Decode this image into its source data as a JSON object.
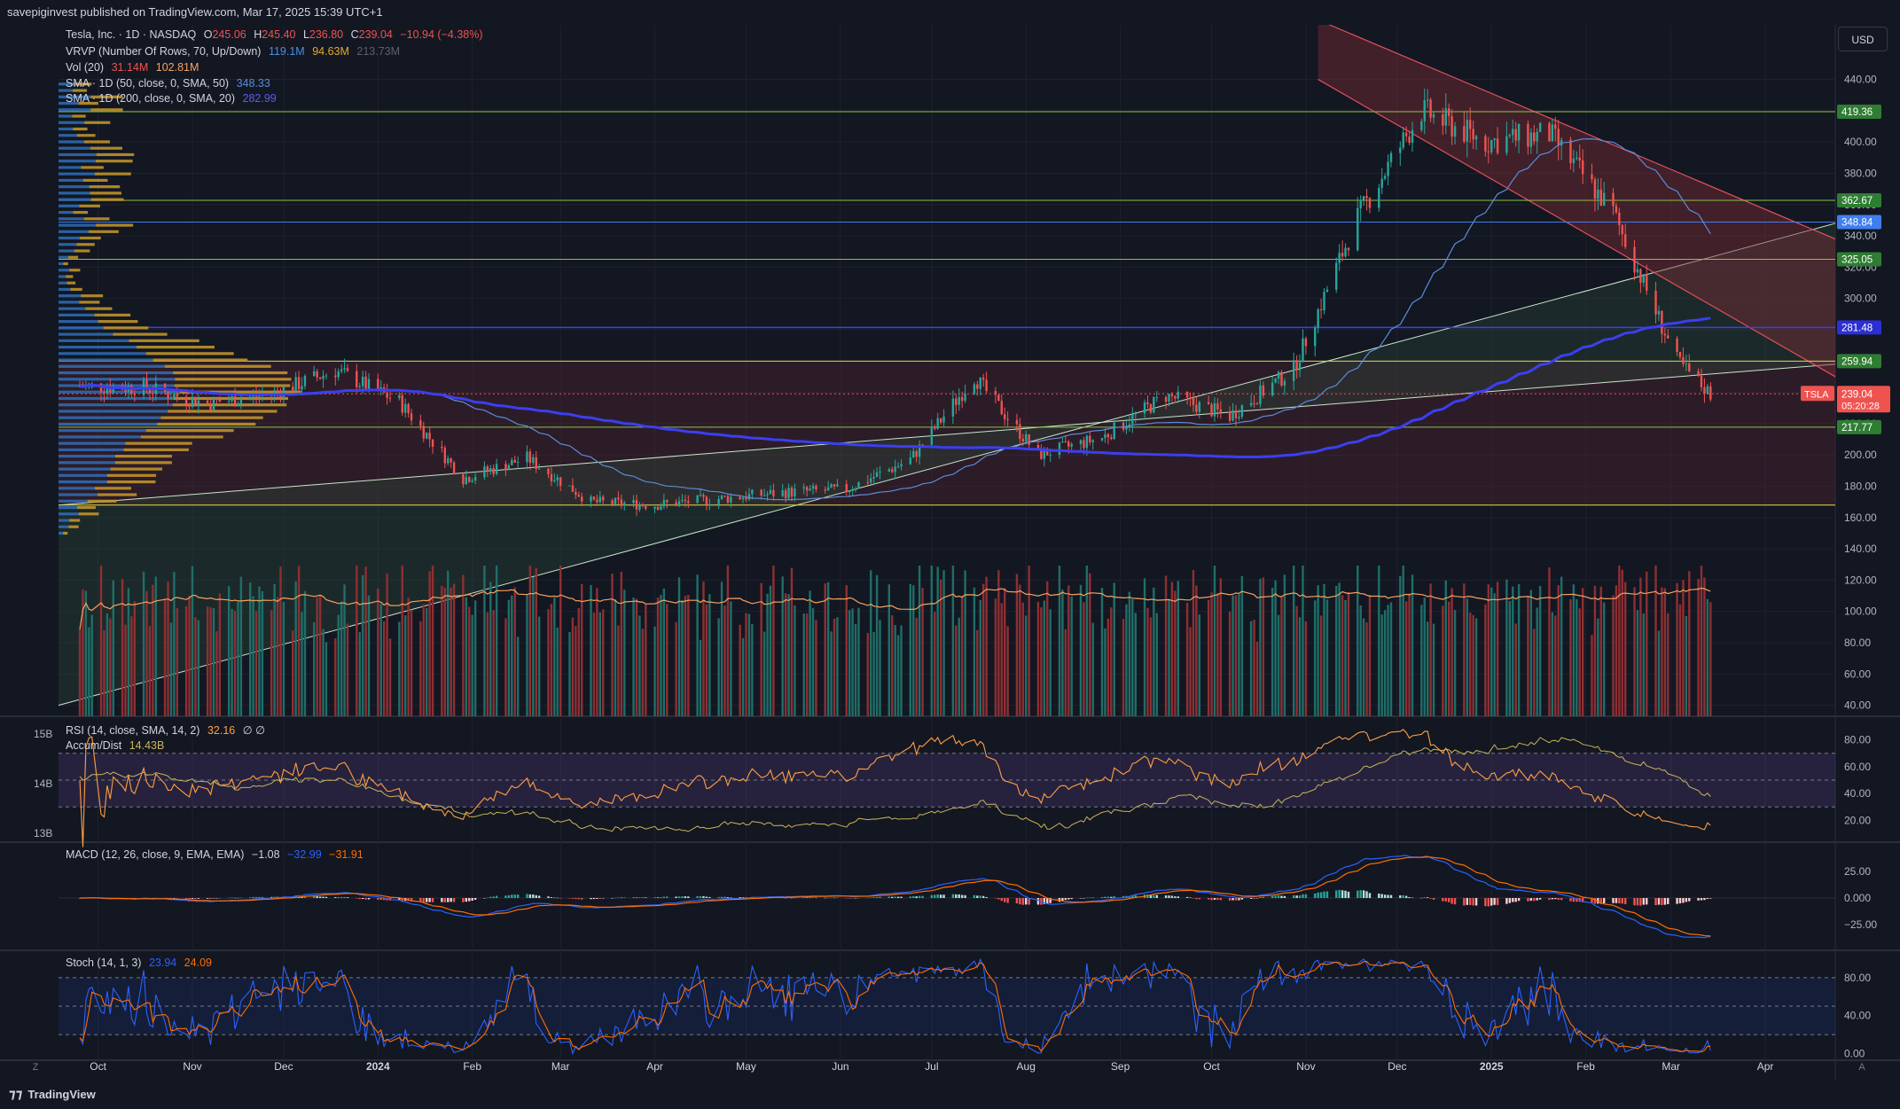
{
  "header": {
    "published": "savepiginvest published on TradingView.com, Mar 17, 2025 15:39 UTC+1"
  },
  "footer": {
    "brand": "TradingView",
    "left_icon": "Z",
    "right_icon": "A"
  },
  "currency": "USD",
  "legend": {
    "symbol": "Tesla, Inc. · 1D · NASDAQ",
    "o_label": "O",
    "o": "245.06",
    "h_label": "H",
    "h": "245.40",
    "l_label": "L",
    "l": "236.80",
    "c_label": "C",
    "c": "239.04",
    "chg": "−10.94 (−4.38%)",
    "vrvp": "VRVP (Number Of Rows, 70, Up/Down)",
    "vrvp_up": "119.1M",
    "vrvp_down": "94.63M",
    "vrvp_total": "213.73M",
    "vol": "Vol (20)",
    "vol_a": "31.14M",
    "vol_b": "102.81M",
    "sma50": "SMA · 1D (50, close, 0, SMA, 50)",
    "sma50_val": "348.33",
    "sma200": "SMA · 1D (200, close, 0, SMA, 20)",
    "sma200_val": "282.99",
    "rsi": "RSI (14, close, SMA, 14, 2)",
    "rsi_val": "32.16",
    "rsi_na": "∅ ∅",
    "ad": "Accum/Dist",
    "ad_val": "14.43B",
    "macd": "MACD (12, 26, close, 9, EMA, EMA)",
    "macd_hist": "−1.08",
    "macd_line": "−32.99",
    "macd_signal": "−31.91",
    "stoch": "Stoch (14, 1, 3)",
    "stoch_k": "23.94",
    "stoch_d": "24.09"
  },
  "colors": {
    "bg": "#131722",
    "grid": "#1e222d",
    "up": "#26a69a",
    "down": "#ef5350",
    "sma50": "#5b8bd9",
    "sma200": "#3b3ff0",
    "vol_ma": "#f4a261",
    "profile_up": "#2f7bd4",
    "profile_down": "#e0a92e",
    "channel_red": "#d14a4a",
    "channel_green": "#c8e6c9",
    "rsi": "#ff9f43",
    "ad": "#c9b458",
    "macd": "#2962ff",
    "signal": "#ff6d00",
    "stoch_k": "#2962ff",
    "stoch_d": "#ff6d00"
  },
  "chart_data": [
    {
      "type": "candlestick",
      "title": "Tesla, Inc. · 1D · NASDAQ",
      "x_ticks": [
        "Oct",
        "Nov",
        "Dec",
        "2024",
        "Feb",
        "Mar",
        "Apr",
        "May",
        "Jun",
        "Jul",
        "Aug",
        "Sep",
        "Oct",
        "Nov",
        "Dec",
        "2025",
        "Feb",
        "Mar",
        "Apr"
      ],
      "y_ticks": [
        40,
        60,
        80,
        100,
        120,
        140,
        160,
        180,
        200,
        220,
        240,
        260,
        280,
        300,
        320,
        340,
        360,
        380,
        400,
        420,
        440
      ],
      "ylim": [
        33,
        476
      ],
      "series": [
        {
          "name": "Price",
          "x": [
            "2023-09-25",
            "2023-10-16",
            "2023-11-06",
            "2023-11-27",
            "2023-12-18",
            "2024-01-08",
            "2024-01-29",
            "2024-02-19",
            "2024-03-11",
            "2024-04-01",
            "2024-04-22",
            "2024-05-13",
            "2024-06-03",
            "2024-06-24",
            "2024-07-15",
            "2024-08-05",
            "2024-08-26",
            "2024-09-16",
            "2024-10-07",
            "2024-10-28",
            "2024-11-18",
            "2024-12-09",
            "2024-12-30",
            "2025-01-20",
            "2025-02-10",
            "2025-03-03",
            "2025-03-14"
          ],
          "close": [
            244,
            243,
            233,
            239,
            254,
            234,
            185,
            198,
            170,
            168,
            172,
            176,
            178,
            197,
            250,
            200,
            211,
            238,
            225,
            255,
            352,
            420,
            400,
            405,
            355,
            260,
            239
          ]
        }
      ],
      "levels": [
        419.36,
        362.67,
        348.84,
        325.05,
        281.48,
        259.94,
        217.77,
        168
      ],
      "last_price": "239.04",
      "countdown": "05:20:28",
      "ticker_tag": "TSLA",
      "level_labels": [
        "419.36",
        "362.67",
        "348.84",
        "325.05",
        "281.48",
        "259.94",
        "217.77"
      ]
    },
    {
      "type": "line",
      "title": "RSI (14, close, SMA, 14, 2)",
      "y_ticks": [
        20,
        40,
        60,
        80
      ],
      "left_ticks": [
        "15B",
        "14B",
        "13B"
      ],
      "series": [
        {
          "name": "RSI",
          "last": 32.16
        }
      ]
    },
    {
      "type": "line",
      "title": "MACD (12, 26, close, 9, EMA, EMA)",
      "y_ticks": [
        "25.00",
        "0.000",
        "−25.00"
      ],
      "series": [
        {
          "name": "MACD",
          "last": -32.99
        },
        {
          "name": "Signal",
          "last": -31.91
        }
      ]
    },
    {
      "type": "line",
      "title": "Stoch (14, 1, 3)",
      "y_ticks": [
        "80.00",
        "40.00",
        "0.00"
      ],
      "series": [
        {
          "name": "%K",
          "last": 23.94
        },
        {
          "name": "%D",
          "last": 24.09
        }
      ]
    }
  ]
}
